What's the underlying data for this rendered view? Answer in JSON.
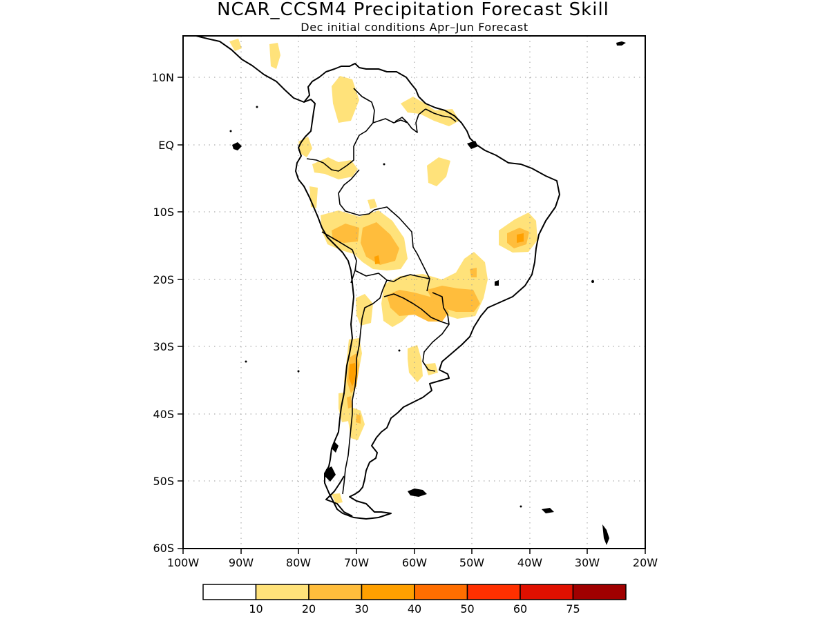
{
  "map": {
    "title": "NCAR_CCSM4 Precipitation Forecast Skill",
    "subtitle": "Dec initial conditions  Apr–Jun Forecast",
    "lon_labels": [
      "100W",
      "90W",
      "80W",
      "70W",
      "60W",
      "50W",
      "40W",
      "30W",
      "20W"
    ],
    "lat_labels": [
      "10N",
      "EQ",
      "10S",
      "20S",
      "30S",
      "40S",
      "50S",
      "60S"
    ],
    "colorbar": {
      "labels": [
        "10",
        "20",
        "30",
        "40",
        "50",
        "60",
        "75"
      ],
      "colors": [
        "#ffffff",
        "#ffe27a",
        "#ffbd3c",
        "#ffa000",
        "#ff6e00",
        "#ff3000",
        "#e01000",
        "#a00000"
      ]
    },
    "skill_colors": {
      "level1": "#ffe27a",
      "level2": "#ffbd3c",
      "level3": "#ffa000"
    }
  }
}
